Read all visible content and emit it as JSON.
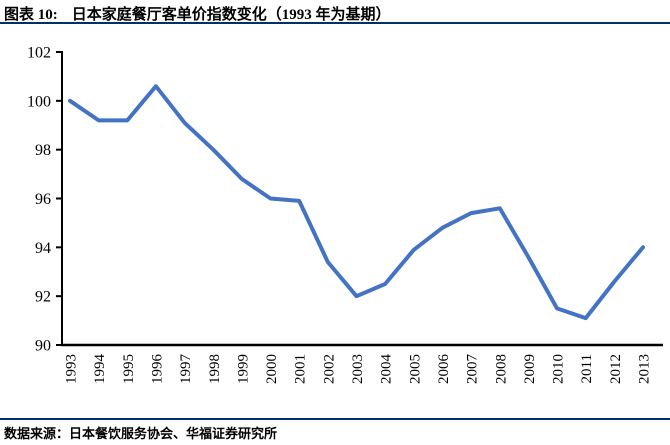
{
  "header": {
    "figure_label": "图表 10:",
    "title": "日本家庭餐厅客单价指数变化（1993 年为基期）"
  },
  "footer": {
    "source": "数据来源：日本餐饮服务协会、华福证券研究所"
  },
  "colors": {
    "divider": "#002f6c",
    "line": "#4472C4",
    "axis": "#000000",
    "tick_text": "#000000"
  },
  "chart_data": {
    "type": "line",
    "title": "日本家庭餐厅客单价指数变化（1993 年为基期）",
    "categories": [
      "1993",
      "1994",
      "1995",
      "1996",
      "1997",
      "1998",
      "1999",
      "2000",
      "2001",
      "2002",
      "2003",
      "2004",
      "2005",
      "2006",
      "2007",
      "2008",
      "2009",
      "2010",
      "2011",
      "2012",
      "2013"
    ],
    "values": [
      100.0,
      99.2,
      99.2,
      100.6,
      99.1,
      98.0,
      96.8,
      96.0,
      95.9,
      93.4,
      92.0,
      92.5,
      93.9,
      94.8,
      95.4,
      95.6,
      93.6,
      91.5,
      91.1,
      92.6,
      94.0
    ],
    "xlabel": "",
    "ylabel": "",
    "ylim": [
      90,
      102
    ],
    "ytick_step": 2,
    "grid": false,
    "legend": false,
    "line_color": "#4472C4"
  }
}
